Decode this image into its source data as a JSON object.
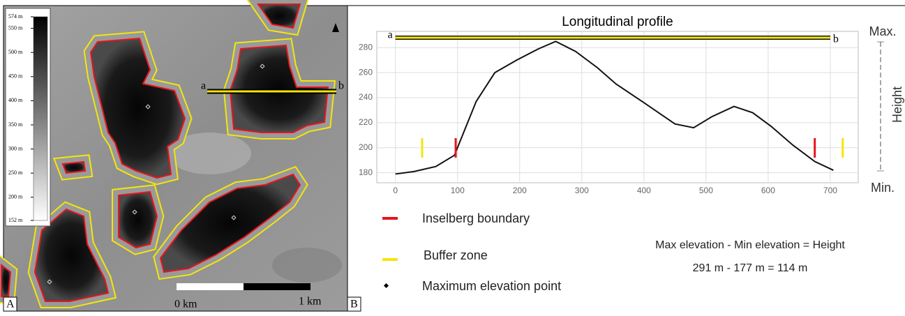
{
  "map": {
    "panel_label": "A",
    "colorbar": {
      "lim": [
        152,
        574
      ],
      "ticks": [
        {
          "value": 574,
          "label": "574 m"
        },
        {
          "value": 550,
          "label": "550 m"
        },
        {
          "value": 500,
          "label": "500 m"
        },
        {
          "value": 450,
          "label": "450 m"
        },
        {
          "value": 400,
          "label": "400 m"
        },
        {
          "value": 350,
          "label": "350 m"
        },
        {
          "value": 300,
          "label": "300 m"
        },
        {
          "value": 250,
          "label": "250 m"
        },
        {
          "value": 200,
          "label": "200 m"
        },
        {
          "value": 152,
          "label": "152 m"
        }
      ]
    },
    "section_labels": [
      "a",
      "b"
    ],
    "scale_labels": [
      "0 km",
      "1 km"
    ]
  },
  "chart_data": {
    "type": "line",
    "panel_label": "B",
    "title": "Longitudinal profile",
    "x": [
      0,
      30,
      65,
      95,
      130,
      160,
      195,
      230,
      258,
      290,
      325,
      355,
      400,
      450,
      480,
      510,
      545,
      575,
      605,
      640,
      675,
      705
    ],
    "series": [
      {
        "color": "#111111",
        "values": [
          179,
          181,
          185,
          194,
          237,
          260,
          270,
          279,
          285,
          277,
          264,
          251,
          236,
          219,
          216,
          225,
          233,
          228,
          217,
          202,
          189,
          182
        ]
      }
    ],
    "xlim": [
      -30,
      745
    ],
    "ylim": [
      172,
      293
    ],
    "xticks": [
      0,
      100,
      200,
      300,
      400,
      500,
      600,
      700
    ],
    "yticks": [
      180,
      200,
      220,
      240,
      260,
      280
    ],
    "grid": true,
    "profile_line": {
      "labels": [
        "a",
        "b"
      ],
      "x": [
        0,
        700
      ],
      "y": 288
    },
    "boundaries": [
      {
        "name": "Inselberg boundary",
        "color": "#e8141b",
        "x": [
          97,
          675
        ]
      },
      {
        "name": "Buffer zone",
        "color": "#f5e50a",
        "x": [
          43,
          720
        ]
      }
    ],
    "max_point_label": "Maximum elevation point",
    "height_axis": {
      "max": "Max.",
      "min": "Min.",
      "label": "Height"
    },
    "equation": "Max elevation - Min elevation = Height",
    "result": "291 m - 177 m = 114 m"
  }
}
